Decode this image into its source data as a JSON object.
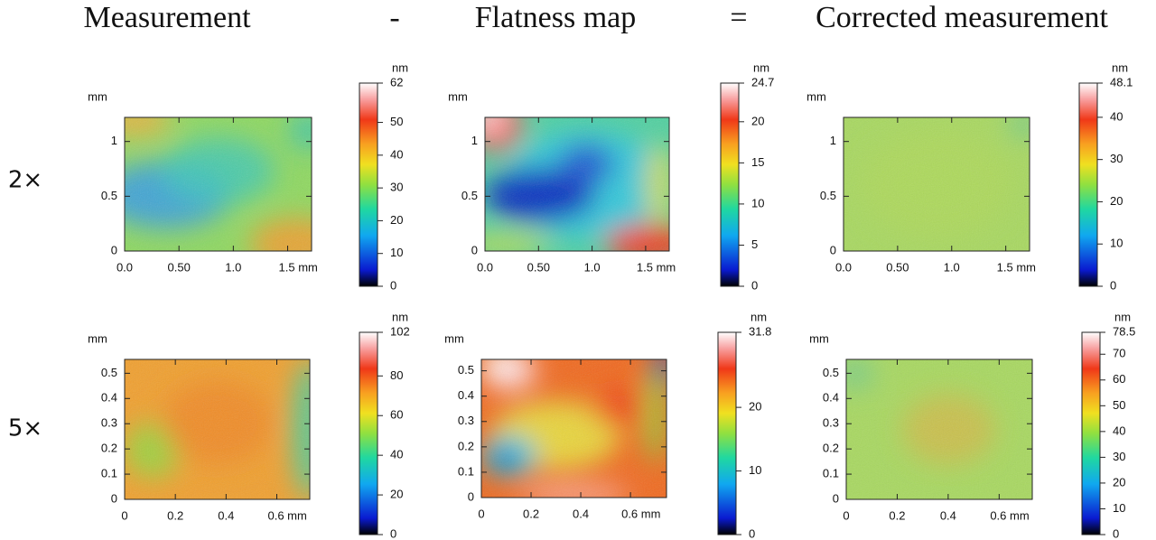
{
  "column_titles": [
    "Measurement",
    "Flatness map",
    "Corrected measurement"
  ],
  "operators": [
    "-",
    "="
  ],
  "row_labels": [
    "2×",
    "5×"
  ],
  "chart_data": [
    {
      "type": "heatmap",
      "ylabel": "mm",
      "colorbar_label": "nm",
      "xlim": [
        0,
        1.72
      ],
      "ylim": [
        0,
        1.22
      ],
      "xticks": [
        {
          "value": 0,
          "label": "0.0"
        },
        {
          "value": 0.5,
          "label": "0.50"
        },
        {
          "value": 1,
          "label": "1.0"
        },
        {
          "value": 1.5,
          "label": "1.5 mm"
        }
      ],
      "yticks": [
        0,
        0.5,
        1
      ],
      "clim": [
        0,
        62
      ],
      "cticks": [
        0,
        10,
        20,
        30,
        40,
        50,
        62
      ]
    },
    {
      "type": "heatmap",
      "ylabel": "mm",
      "colorbar_label": "nm",
      "xlim": [
        0,
        1.72
      ],
      "ylim": [
        0,
        1.22
      ],
      "xticks": [
        {
          "value": 0,
          "label": "0.0"
        },
        {
          "value": 0.5,
          "label": "0.50"
        },
        {
          "value": 1,
          "label": "1.0"
        },
        {
          "value": 1.5,
          "label": "1.5 mm"
        }
      ],
      "yticks": [
        0,
        0.5,
        1
      ],
      "clim": [
        0,
        24.7
      ],
      "cticks": [
        0,
        5,
        10,
        15,
        20,
        24.7
      ]
    },
    {
      "type": "heatmap",
      "ylabel": "mm",
      "colorbar_label": "nm",
      "xlim": [
        0,
        1.72
      ],
      "ylim": [
        0,
        1.22
      ],
      "xticks": [
        {
          "value": 0,
          "label": "0.0"
        },
        {
          "value": 0.5,
          "label": "0.50"
        },
        {
          "value": 1,
          "label": "1.0"
        },
        {
          "value": 1.5,
          "label": "1.5 mm"
        }
      ],
      "yticks": [
        0,
        0.5,
        1
      ],
      "clim": [
        0,
        48.1
      ],
      "cticks": [
        0,
        10,
        20,
        30,
        40,
        48.1
      ]
    },
    {
      "type": "heatmap",
      "ylabel": "mm",
      "colorbar_label": "nm",
      "xlim": [
        0,
        0.73
      ],
      "ylim": [
        0,
        0.555
      ],
      "xticks": [
        0,
        0.2,
        0.4,
        {
          "value": 0.6,
          "label": "0.6 mm"
        }
      ],
      "yticks": [
        0,
        0.1,
        0.2,
        0.3,
        0.4,
        0.5
      ],
      "clim": [
        0,
        102
      ],
      "cticks": [
        0,
        20,
        40,
        60,
        80,
        102
      ]
    },
    {
      "type": "heatmap",
      "ylabel": "mm",
      "colorbar_label": "nm",
      "xlim": [
        0,
        0.745
      ],
      "ylim": [
        0,
        0.545
      ],
      "xticks": [
        0,
        0.2,
        0.4,
        {
          "value": 0.6,
          "label": "0.6 mm"
        }
      ],
      "yticks": [
        0,
        0.1,
        0.2,
        0.3,
        0.4,
        0.5
      ],
      "clim": [
        0,
        31.8
      ],
      "cticks": [
        0,
        10,
        20,
        31.8
      ]
    },
    {
      "type": "heatmap",
      "ylabel": "mm",
      "colorbar_label": "nm",
      "xlim": [
        0,
        0.73
      ],
      "ylim": [
        0,
        0.555
      ],
      "xticks": [
        0,
        0.2,
        0.4,
        {
          "value": 0.6,
          "label": "0.6 mm"
        }
      ],
      "yticks": [
        0,
        0.1,
        0.2,
        0.3,
        0.4,
        0.5
      ],
      "clim": [
        0,
        78.5
      ],
      "cticks": [
        0,
        10,
        20,
        30,
        40,
        50,
        60,
        70,
        78.5
      ]
    }
  ]
}
